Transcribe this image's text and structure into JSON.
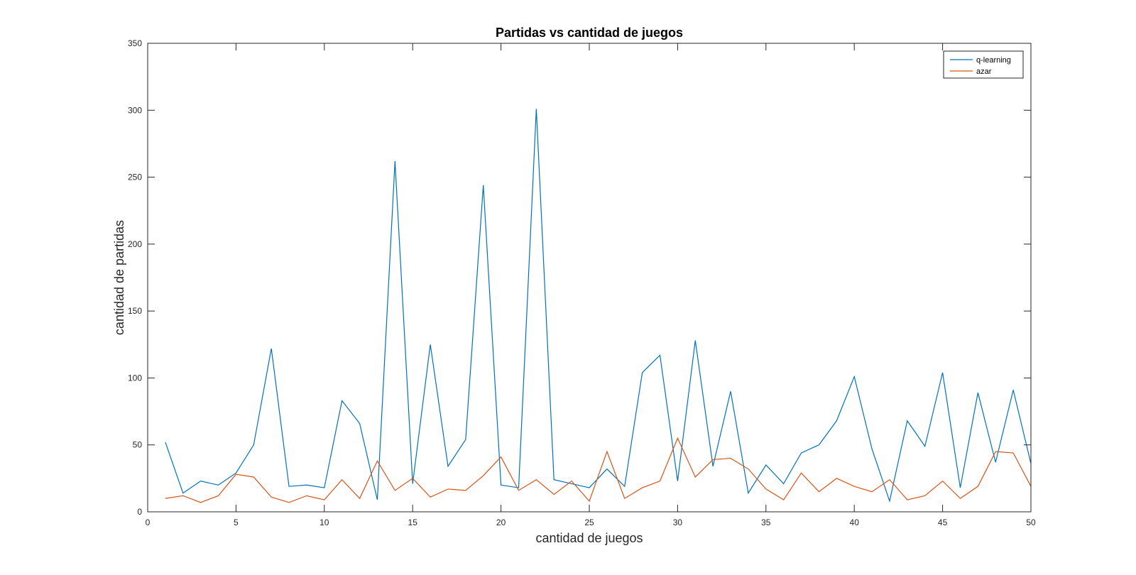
{
  "chart_data": {
    "type": "line",
    "title": "Partidas vs cantidad de juegos",
    "xlabel": "cantidad de juegos",
    "ylabel": "cantidad de partidas",
    "xlim": [
      0,
      50
    ],
    "ylim": [
      0,
      350
    ],
    "xticks": [
      0,
      5,
      10,
      15,
      20,
      25,
      30,
      35,
      40,
      45,
      50
    ],
    "yticks": [
      0,
      50,
      100,
      150,
      200,
      250,
      300,
      350
    ],
    "grid": false,
    "legend_position": "top-right",
    "x": [
      1,
      2,
      3,
      4,
      5,
      6,
      7,
      8,
      9,
      10,
      11,
      12,
      13,
      14,
      15,
      16,
      17,
      18,
      19,
      20,
      21,
      22,
      23,
      24,
      25,
      26,
      27,
      28,
      29,
      30,
      31,
      32,
      33,
      34,
      35,
      36,
      37,
      38,
      39,
      40,
      41,
      42,
      43,
      44,
      45,
      46,
      47,
      48,
      49,
      50
    ],
    "series": [
      {
        "name": "q-learning",
        "color": "#0072bd",
        "values": [
          52,
          14,
          23,
          20,
          29,
          50,
          122,
          19,
          20,
          18,
          83,
          66,
          9,
          262,
          21,
          125,
          34,
          54,
          244,
          20,
          18,
          301,
          24,
          21,
          18,
          32,
          19,
          104,
          117,
          23,
          128,
          34,
          90,
          14,
          35,
          21,
          44,
          50,
          68,
          101,
          47,
          8,
          68,
          49,
          104,
          18,
          89,
          37,
          91,
          36
        ]
      },
      {
        "name": "azar",
        "color": "#d95319",
        "values": [
          10,
          12,
          7,
          12,
          28,
          26,
          11,
          7,
          12,
          9,
          24,
          10,
          38,
          16,
          25,
          11,
          17,
          16,
          27,
          41,
          16,
          24,
          13,
          23,
          8,
          45,
          10,
          18,
          23,
          55,
          26,
          39,
          40,
          32,
          17,
          9,
          29,
          15,
          25,
          19,
          15,
          24,
          9,
          12,
          23,
          10,
          19,
          45,
          44,
          19
        ]
      }
    ]
  }
}
